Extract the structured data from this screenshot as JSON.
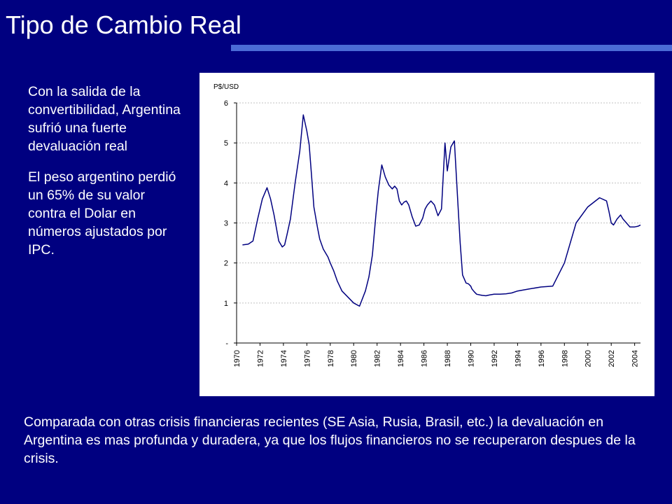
{
  "slide": {
    "title": "Tipo de Cambio Real",
    "side_paragraphs": [
      "Con la salida de la convertibilidad, Argentina sufrió una fuerte devaluación real",
      "El peso argentino perdió un  65% de su valor contra el Dolar en números ajustados por IPC."
    ],
    "bottom_paragraph": "Comparada con otras crisis financieras recientes (SE Asia, Rusia, Brasil, etc.) la devaluación en Argentina es mas profunda y duradera, ya que los flujos financieros no se recuperaron despues de la crisis."
  },
  "colors": {
    "background": "#000080",
    "title_rule": "#4a6bd6",
    "text": "#ffffff",
    "line": "#000080",
    "grid": "#c0c0c0"
  },
  "chart_data": {
    "type": "line",
    "unit_label": "P$/USD",
    "ylim": [
      0,
      6
    ],
    "y_ticks": [
      "-",
      "1",
      "2",
      "3",
      "4",
      "5",
      "6"
    ],
    "x_ticks": [
      "1970",
      "1972",
      "1974",
      "1976",
      "1978",
      "1980",
      "1982",
      "1984",
      "1986",
      "1988",
      "1990",
      "1992",
      "1994",
      "1996",
      "1998",
      "2000",
      "2002",
      "2004"
    ],
    "xlim": [
      1970,
      2004.5
    ],
    "grid": true,
    "series": [
      {
        "x": [
          1970.5,
          1971.0,
          1971.4,
          1971.8,
          1972.2,
          1972.6,
          1972.9,
          1973.2,
          1973.6,
          1973.9,
          1974.1,
          1974.3,
          1974.6,
          1975.0,
          1975.4,
          1975.7,
          1976.0,
          1976.2,
          1976.4,
          1976.6,
          1976.9,
          1977.1,
          1977.4,
          1977.6,
          1977.8,
          1978.0,
          1978.3,
          1978.6,
          1979.0,
          1979.5,
          1980.0,
          1980.5,
          1981.0,
          1981.3,
          1981.6,
          1981.9,
          1982.1,
          1982.4,
          1982.7,
          1983.0,
          1983.3,
          1983.5,
          1983.7,
          1983.9,
          1984.1,
          1984.3,
          1984.5,
          1984.7,
          1985.0,
          1985.3,
          1985.6,
          1985.9,
          1986.1,
          1986.3,
          1986.6,
          1986.9,
          1987.2,
          1987.5,
          1987.8,
          1988.0,
          1988.3,
          1988.6,
          1988.9,
          1989.1,
          1989.3,
          1989.6,
          1989.8,
          1990.0,
          1990.1,
          1990.3,
          1990.5,
          1990.8,
          1991.0,
          1991.3,
          1991.6,
          1992.0,
          1992.5,
          1993.0,
          1993.5,
          1994.0,
          1995.0,
          1996.0,
          1997.0,
          1998.0,
          1999.0,
          2000.0,
          2001.0,
          2001.6,
          2001.8,
          2002.0,
          2002.2,
          2002.5,
          2002.8,
          2003.0,
          2003.3,
          2003.6,
          2004.0,
          2004.3,
          2004.5
        ],
        "values": [
          2.45,
          2.47,
          2.55,
          3.1,
          3.6,
          3.88,
          3.6,
          3.2,
          2.55,
          2.4,
          2.45,
          2.7,
          3.1,
          4.0,
          4.8,
          5.7,
          5.3,
          4.95,
          4.2,
          3.4,
          2.9,
          2.6,
          2.35,
          2.25,
          2.15,
          2.0,
          1.8,
          1.55,
          1.3,
          1.15,
          1.0,
          0.92,
          1.3,
          1.65,
          2.2,
          3.2,
          3.8,
          4.45,
          4.15,
          3.95,
          3.85,
          3.92,
          3.85,
          3.55,
          3.45,
          3.52,
          3.55,
          3.45,
          3.15,
          2.92,
          2.95,
          3.12,
          3.35,
          3.45,
          3.55,
          3.45,
          3.18,
          3.35,
          5.0,
          4.3,
          4.9,
          5.05,
          3.5,
          2.5,
          1.7,
          1.5,
          1.48,
          1.42,
          1.35,
          1.28,
          1.22,
          1.2,
          1.19,
          1.18,
          1.2,
          1.22,
          1.22,
          1.23,
          1.25,
          1.3,
          1.35,
          1.4,
          1.42,
          2.0,
          3.0,
          3.4,
          3.63,
          3.55,
          3.3,
          3.0,
          2.95,
          3.1,
          3.2,
          3.1,
          3.0,
          2.9,
          2.9,
          2.92,
          2.95
        ]
      }
    ]
  }
}
